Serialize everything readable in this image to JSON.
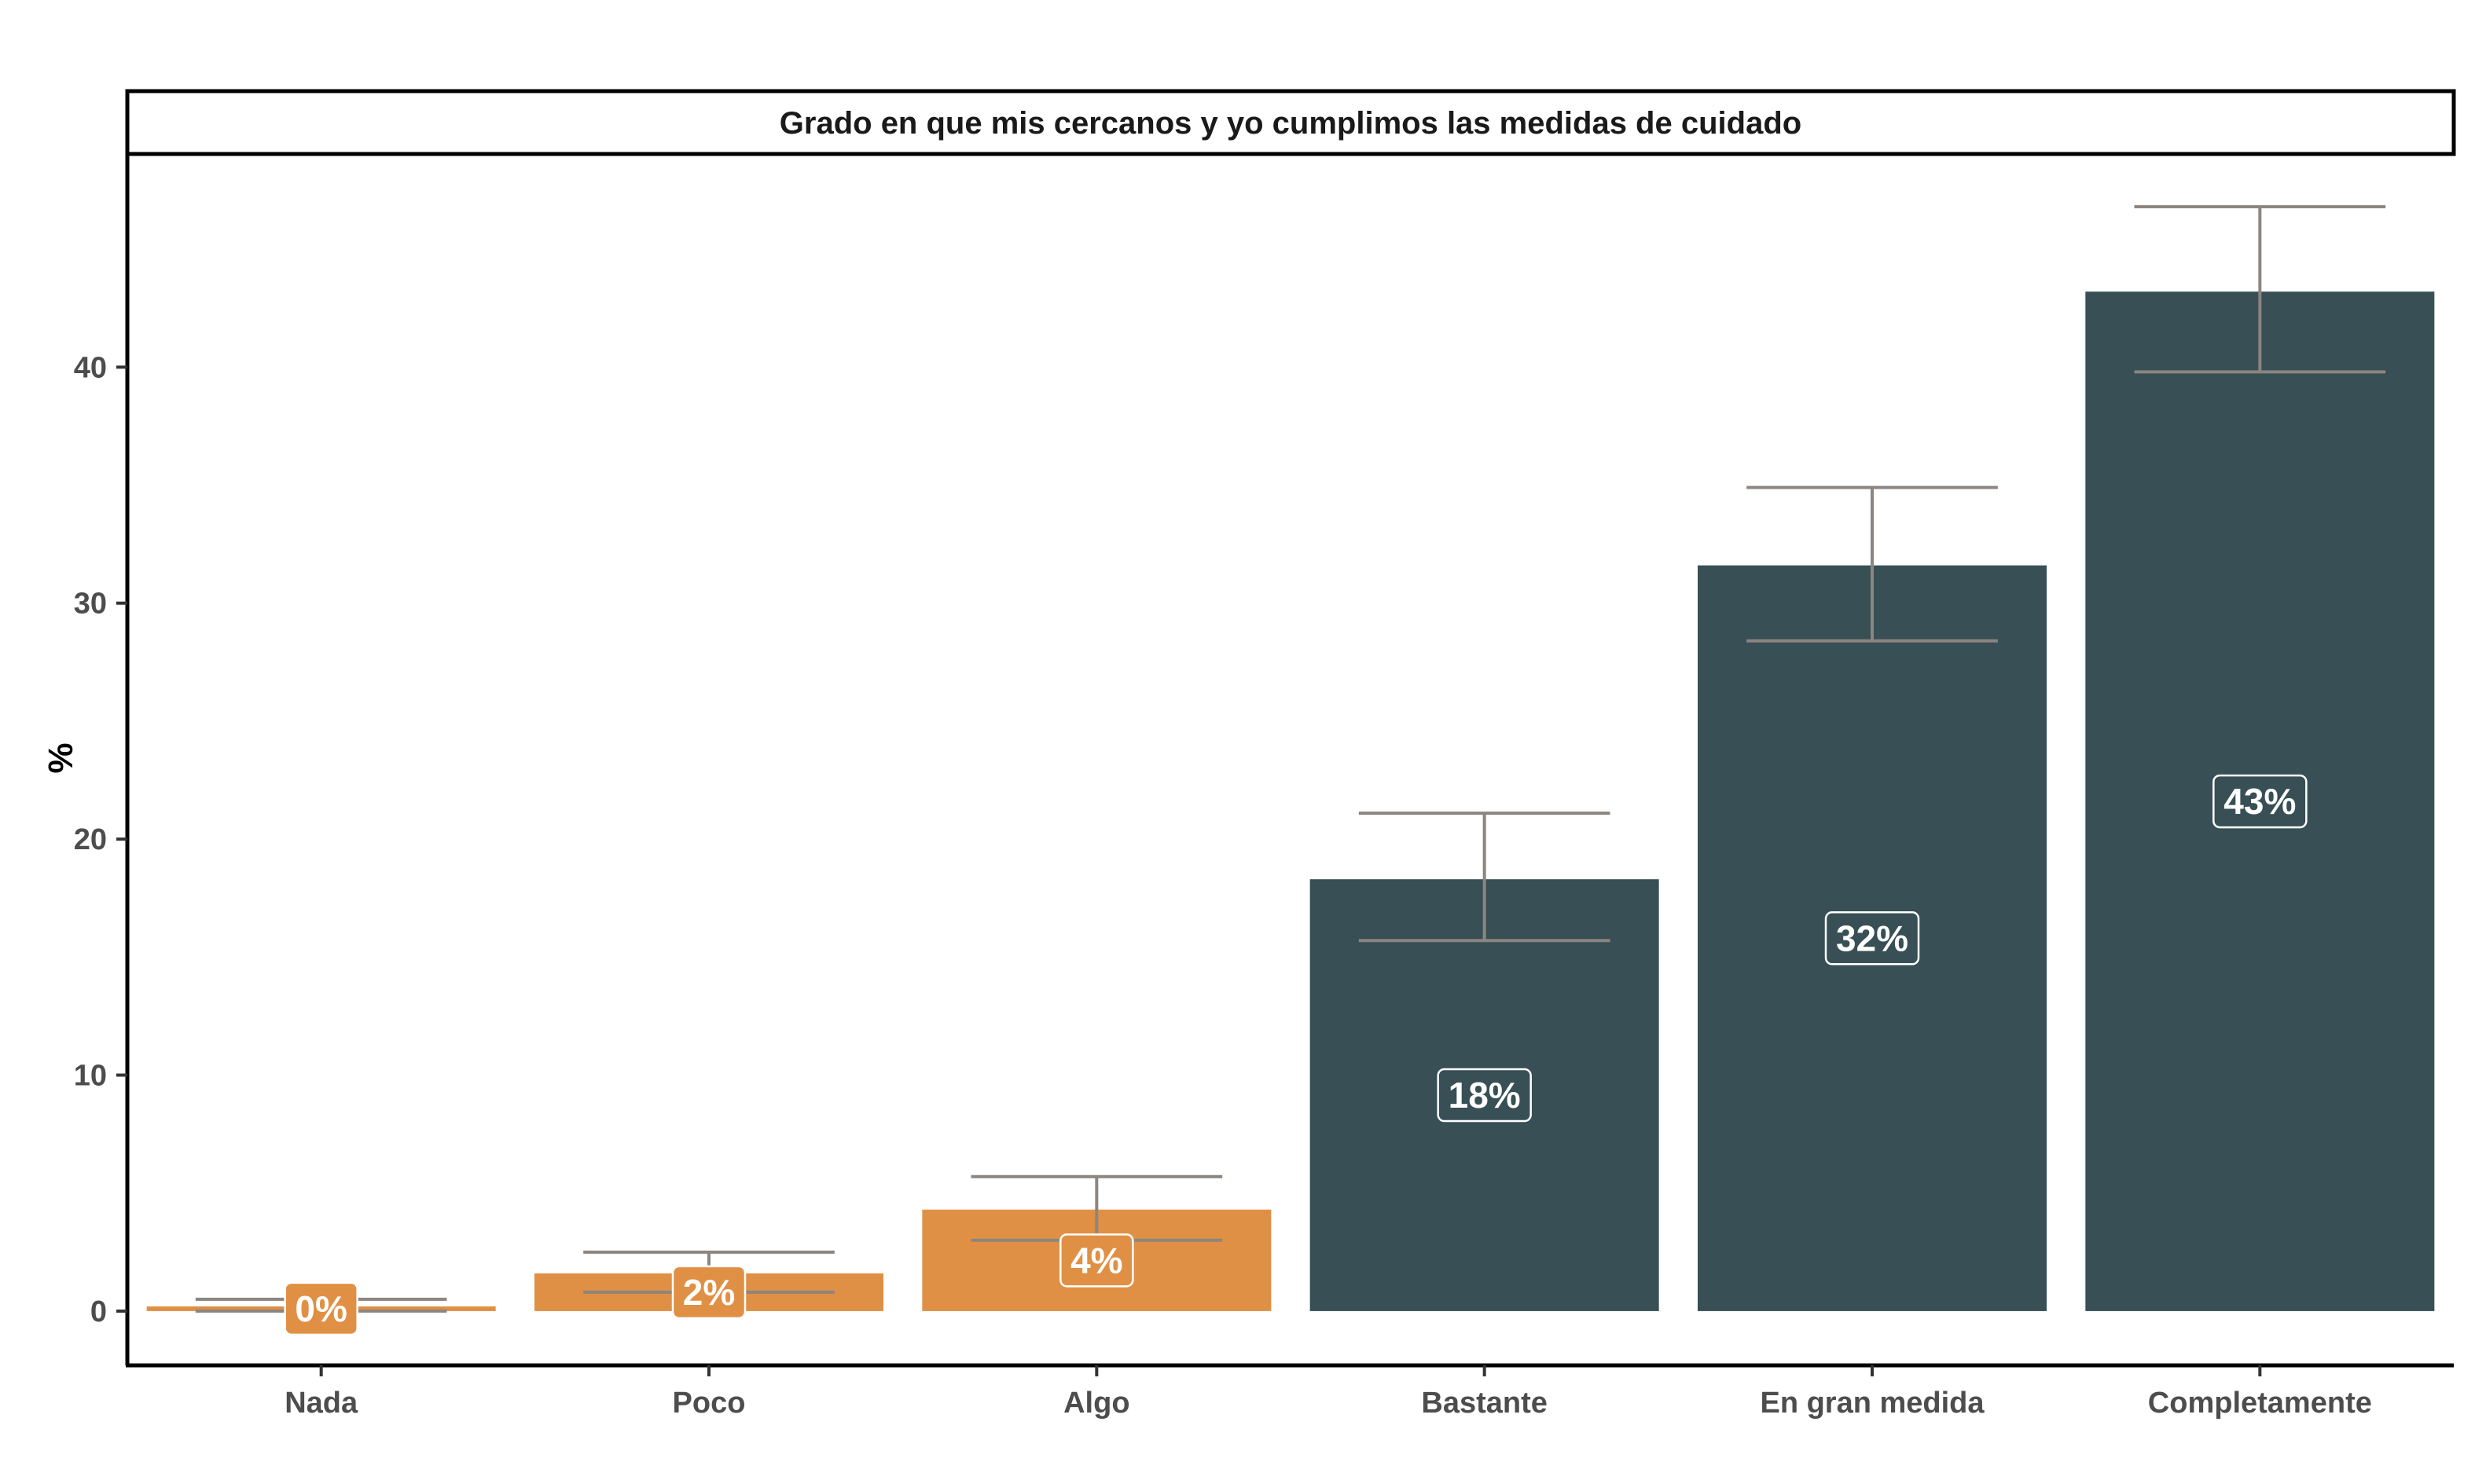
{
  "chart_data": {
    "type": "bar",
    "title": "Grado en que mis cercanos y yo cumplimos las medidas de cuidado",
    "xlabel": "",
    "ylabel": "%",
    "categories": [
      "Nada",
      "Poco",
      "Algo",
      "Bastante",
      "En gran medida",
      "Completamente"
    ],
    "values": [
      0.2,
      1.6,
      4.3,
      18.3,
      31.6,
      43.2
    ],
    "error_low": [
      0.0,
      0.8,
      3.0,
      15.7,
      28.4,
      39.8
    ],
    "error_high": [
      0.5,
      2.5,
      5.7,
      21.1,
      34.9,
      46.8
    ],
    "labels": [
      "0%",
      "2%",
      "4%",
      "18%",
      "32%",
      "43%"
    ],
    "bar_colors": [
      "#e09044",
      "#e09044",
      "#e09044",
      "#374f55",
      "#374f55",
      "#374f55"
    ],
    "errorbar_color": "#8c8580",
    "ylim": [
      -2.3,
      48.9
    ],
    "yticks": [
      0,
      10,
      20,
      30,
      40
    ],
    "grid": false,
    "legend": "none"
  }
}
